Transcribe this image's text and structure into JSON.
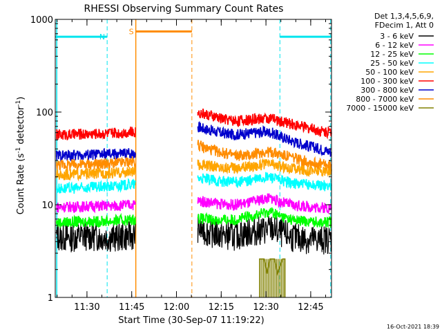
{
  "chart_data": {
    "type": "line",
    "title": "RHESSI Observing Summary Count Rates",
    "xlabel": "Start Time (30-Sep-07 11:19:22)",
    "ylabel_parts": [
      "Count Rate (s",
      "-1",
      " detector",
      "-1",
      ")"
    ],
    "x_unit": "minutes since 11:19:22",
    "xlim": [
      0,
      92.6
    ],
    "ylim": [
      1,
      1000
    ],
    "y_scale": "log",
    "x_ticks": [
      {
        "t": 10.63,
        "label": "11:30"
      },
      {
        "t": 25.63,
        "label": "11:45"
      },
      {
        "t": 40.63,
        "label": "12:00"
      },
      {
        "t": 55.63,
        "label": "12:15"
      },
      {
        "t": 70.63,
        "label": "12:30"
      },
      {
        "t": 85.63,
        "label": "12:45"
      }
    ],
    "y_ticks": [
      {
        "v": 1,
        "label": "1"
      },
      {
        "v": 10,
        "label": "10"
      },
      {
        "v": 100,
        "label": "100"
      },
      {
        "v": 1000,
        "label": "1000"
      }
    ],
    "legend_header": [
      "Det 1,3,4,5,6,9,",
      "FDecim 1, Att 0"
    ],
    "legend_position": "right",
    "series": [
      {
        "name": "3 - 6 keV",
        "color": "#000000",
        "points": [
          [
            0.4,
            4.5
          ],
          [
            5,
            4.4
          ],
          [
            10,
            4.6
          ],
          [
            15,
            4.5
          ],
          [
            20,
            4.4
          ],
          [
            25,
            4.6
          ],
          [
            27,
            4.6
          ],
          [
            47.8,
            5.6
          ],
          [
            50,
            5.2
          ],
          [
            55,
            4.7
          ],
          [
            60,
            4.6
          ],
          [
            65,
            5.0
          ],
          [
            70,
            5.3
          ],
          [
            72.5,
            5.5
          ],
          [
            75,
            5.0
          ],
          [
            80,
            4.4
          ],
          [
            85,
            4.2
          ],
          [
            90,
            4.2
          ],
          [
            92.6,
            4.3
          ]
        ]
      },
      {
        "name": "6 - 12 keV",
        "color": "#ff00ff",
        "points": [
          [
            0.4,
            9.4
          ],
          [
            5,
            9.5
          ],
          [
            10,
            9.6
          ],
          [
            15,
            9.7
          ],
          [
            20,
            9.7
          ],
          [
            25,
            10.0
          ],
          [
            27,
            10.0
          ],
          [
            47.8,
            11.0
          ],
          [
            50,
            10.8
          ],
          [
            55,
            10.2
          ],
          [
            60,
            10.0
          ],
          [
            65,
            10.5
          ],
          [
            70,
            11.6
          ],
          [
            72.5,
            11.8
          ],
          [
            75,
            10.8
          ],
          [
            80,
            9.8
          ],
          [
            85,
            9.5
          ],
          [
            90,
            9.3
          ],
          [
            92.6,
            9.3
          ]
        ]
      },
      {
        "name": "12 - 25 keV",
        "color": "#00ff00",
        "points": [
          [
            0.4,
            6.4
          ],
          [
            5,
            6.5
          ],
          [
            10,
            6.6
          ],
          [
            15,
            6.6
          ],
          [
            20,
            6.7
          ],
          [
            25,
            6.9
          ],
          [
            27,
            6.9
          ],
          [
            47.8,
            7.2
          ],
          [
            50,
            7.0
          ],
          [
            55,
            6.8
          ],
          [
            60,
            6.9
          ],
          [
            65,
            7.4
          ],
          [
            70,
            8.2
          ],
          [
            72.5,
            8.4
          ],
          [
            75,
            7.6
          ],
          [
            80,
            6.8
          ],
          [
            85,
            6.6
          ],
          [
            90,
            6.5
          ],
          [
            92.6,
            6.5
          ]
        ]
      },
      {
        "name": "25 - 50 keV",
        "color": "#00ffff",
        "points": [
          [
            0.4,
            15
          ],
          [
            5,
            15
          ],
          [
            10,
            15.3
          ],
          [
            15,
            15.5
          ],
          [
            20,
            15.8
          ],
          [
            25,
            16.5
          ],
          [
            27,
            16.5
          ],
          [
            47.8,
            19.5
          ],
          [
            50,
            19
          ],
          [
            55,
            18
          ],
          [
            60,
            17.5
          ],
          [
            65,
            18.2
          ],
          [
            70,
            19.6
          ],
          [
            72.5,
            20
          ],
          [
            75,
            18.5
          ],
          [
            80,
            17
          ],
          [
            85,
            16.5
          ],
          [
            90,
            16
          ],
          [
            92.6,
            16
          ]
        ]
      },
      {
        "name": "50 - 100 keV",
        "color": "#ffa500",
        "points": [
          [
            0.4,
            21
          ],
          [
            5,
            21.2
          ],
          [
            10,
            21.5
          ],
          [
            15,
            21.8
          ],
          [
            20,
            22
          ],
          [
            25,
            22.5
          ],
          [
            27,
            22.5
          ],
          [
            47.8,
            27
          ],
          [
            50,
            26.5
          ],
          [
            55,
            25.5
          ],
          [
            60,
            25
          ],
          [
            65,
            26
          ],
          [
            70,
            27
          ],
          [
            72.5,
            27.5
          ],
          [
            75,
            26
          ],
          [
            80,
            24.5
          ],
          [
            85,
            23.5
          ],
          [
            90,
            23
          ],
          [
            92.6,
            23
          ]
        ]
      },
      {
        "name": "100 - 300 keV",
        "color": "#ff0000",
        "points": [
          [
            0.4,
            57
          ],
          [
            5,
            57
          ],
          [
            10,
            58
          ],
          [
            15,
            58.5
          ],
          [
            20,
            59
          ],
          [
            25,
            61
          ],
          [
            27,
            61
          ],
          [
            47.8,
            100
          ],
          [
            50,
            95
          ],
          [
            55,
            86
          ],
          [
            60,
            81
          ],
          [
            65,
            82
          ],
          [
            70,
            86
          ],
          [
            72.5,
            85
          ],
          [
            75,
            80
          ],
          [
            80,
            73
          ],
          [
            85,
            67
          ],
          [
            90,
            62
          ],
          [
            92.6,
            60
          ]
        ]
      },
      {
        "name": "300 - 800 keV",
        "color": "#0000cc",
        "points": [
          [
            0.4,
            34
          ],
          [
            5,
            34
          ],
          [
            10,
            34.5
          ],
          [
            15,
            35
          ],
          [
            20,
            35
          ],
          [
            25,
            36
          ],
          [
            27,
            36
          ],
          [
            47.8,
            70
          ],
          [
            50,
            66
          ],
          [
            55,
            60
          ],
          [
            60,
            57
          ],
          [
            65,
            59
          ],
          [
            70,
            61
          ],
          [
            72.5,
            60
          ],
          [
            75,
            55
          ],
          [
            80,
            48
          ],
          [
            85,
            43
          ],
          [
            90,
            39
          ],
          [
            92.6,
            37
          ]
        ]
      },
      {
        "name": "800 - 7000 keV",
        "color": "#ff8c00",
        "points": [
          [
            0.4,
            27
          ],
          [
            5,
            27
          ],
          [
            10,
            27.3
          ],
          [
            15,
            27.5
          ],
          [
            20,
            28
          ],
          [
            25,
            29
          ],
          [
            27,
            29
          ],
          [
            47.8,
            44
          ],
          [
            50,
            41
          ],
          [
            55,
            37
          ],
          [
            60,
            34
          ],
          [
            65,
            34
          ],
          [
            70,
            37
          ],
          [
            72.5,
            37
          ],
          [
            75,
            35
          ],
          [
            80,
            32
          ],
          [
            85,
            29
          ],
          [
            90,
            27
          ],
          [
            92.6,
            26.5
          ]
        ]
      },
      {
        "name": "7000 - 15000 keV",
        "color": "#808000",
        "points": [
          [
            68.5,
            1
          ],
          [
            68.5,
            2.6
          ],
          [
            70,
            2.6
          ],
          [
            71,
            1.8
          ],
          [
            72,
            2.6
          ],
          [
            73.5,
            2.6
          ],
          [
            74.5,
            1.8
          ],
          [
            76.2,
            2.6
          ],
          [
            77,
            2.6
          ],
          [
            77,
            1
          ]
        ]
      }
    ],
    "flags": {
      "night_label": "N",
      "saa_label": "S",
      "night_bars": [
        {
          "start": 0.0,
          "end": 17.4,
          "value": 650
        },
        {
          "start": 75.3,
          "end": 92.6,
          "value": 650
        }
      ],
      "saa_bar": {
        "start": 27.0,
        "end": 45.8,
        "value": 740
      },
      "night_boundaries": [
        17.4,
        75.3
      ],
      "saa_boundaries": [
        27.0,
        45.8
      ],
      "night_color": "#00e5ee",
      "saa_color": "#ff8c00"
    },
    "timestamp": "16-Oct-2021 18:39"
  }
}
